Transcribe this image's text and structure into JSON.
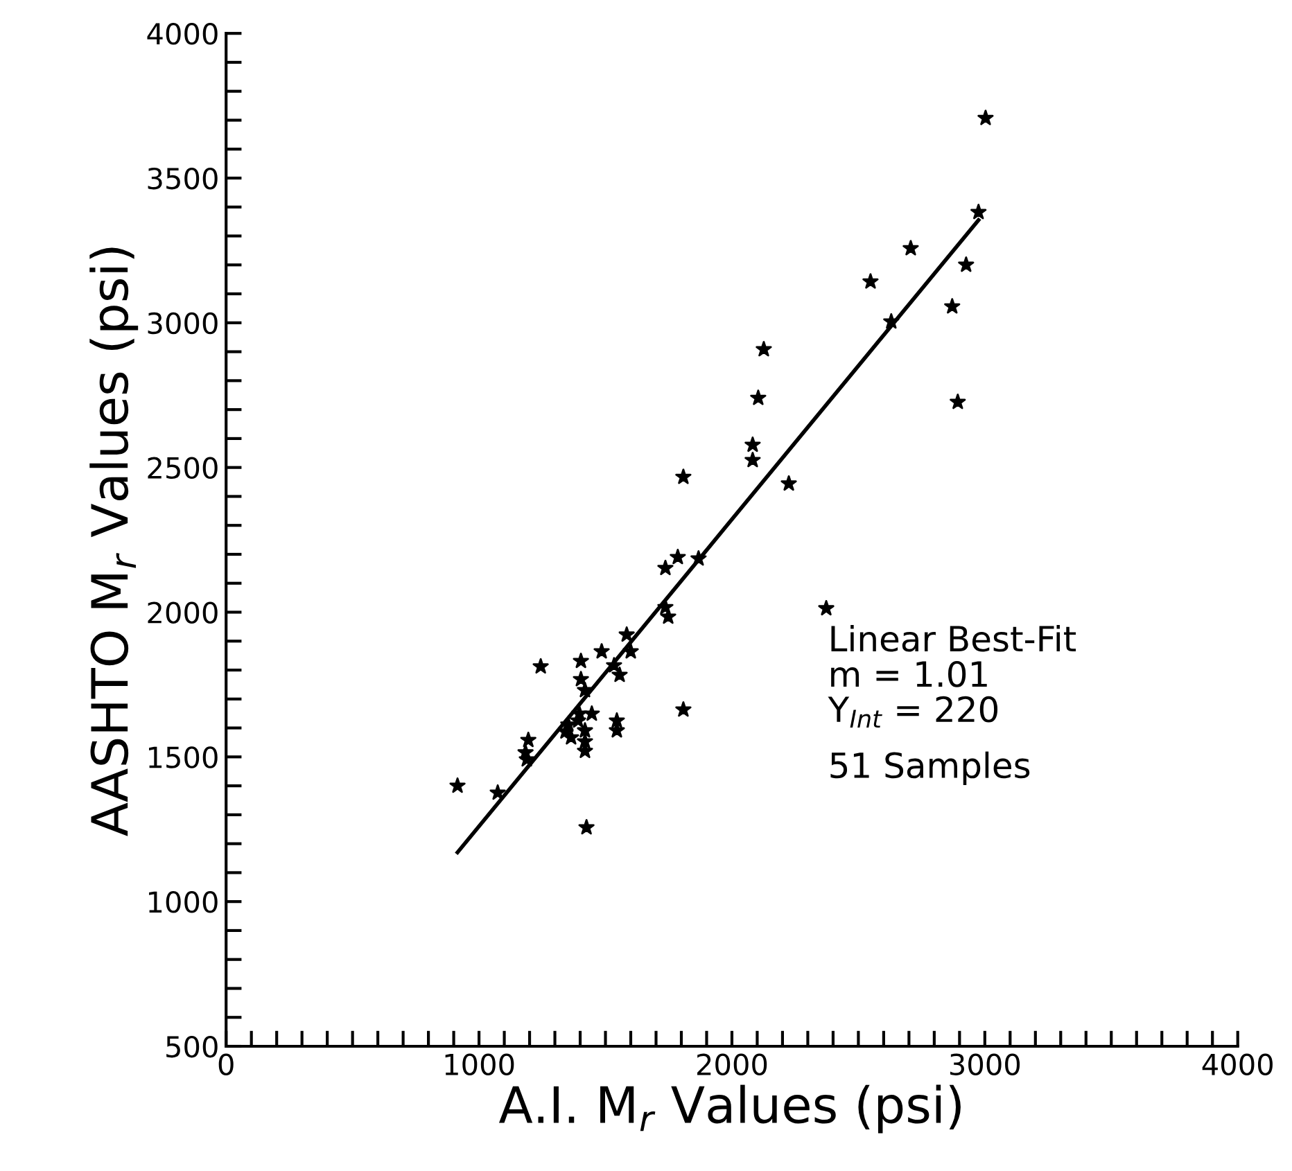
{
  "chart_data": {
    "type": "scatter",
    "xlabel": "A.I. M$_{r}$ Values (psi)",
    "ylabel": "AASHTO M$_{r}$ Values (psi)",
    "xlim": [
      0,
      4000
    ],
    "ylim": [
      500,
      4000
    ],
    "xticks": [
      0,
      {
        "value": 100,
        "label": null
      },
      {
        "value": 200,
        "label": null
      },
      {
        "value": 300,
        "label": null
      },
      {
        "value": 400,
        "label": null
      },
      {
        "value": 500,
        "label": null
      },
      {
        "value": 600,
        "label": null
      },
      {
        "value": 700,
        "label": null
      },
      {
        "value": 800,
        "label": null
      },
      {
        "value": 900,
        "label": null
      },
      1000,
      {
        "value": 1100,
        "label": null
      },
      {
        "value": 1200,
        "label": null
      },
      {
        "value": 1300,
        "label": null
      },
      {
        "value": 1400,
        "label": null
      },
      {
        "value": 1500,
        "label": null
      },
      {
        "value": 1600,
        "label": null
      },
      {
        "value": 1700,
        "label": null
      },
      {
        "value": 1800,
        "label": null
      },
      {
        "value": 1900,
        "label": null
      },
      2000,
      {
        "value": 2100,
        "label": null
      },
      {
        "value": 2200,
        "label": null
      },
      {
        "value": 2300,
        "label": null
      },
      {
        "value": 2400,
        "label": null
      },
      {
        "value": 2500,
        "label": null
      },
      {
        "value": 2600,
        "label": null
      },
      {
        "value": 2700,
        "label": null
      },
      {
        "value": 2800,
        "label": null
      },
      {
        "value": 2900,
        "label": null
      },
      3000,
      {
        "value": 3100,
        "label": null
      },
      {
        "value": 3200,
        "label": null
      },
      {
        "value": 3300,
        "label": null
      },
      {
        "value": 3400,
        "label": null
      },
      {
        "value": 3500,
        "label": null
      },
      {
        "value": 3600,
        "label": null
      },
      {
        "value": 3700,
        "label": null
      },
      {
        "value": 3800,
        "label": null
      },
      {
        "value": 3900,
        "label": null
      },
      4000
    ],
    "yticks": [
      500,
      {
        "value": 600,
        "label": null
      },
      {
        "value": 700,
        "label": null
      },
      {
        "value": 800,
        "label": null
      },
      {
        "value": 900,
        "label": null
      },
      1000,
      {
        "value": 1100,
        "label": null
      },
      {
        "value": 1200,
        "label": null
      },
      {
        "value": 1300,
        "label": null
      },
      {
        "value": 1400,
        "label": null
      },
      1500,
      {
        "value": 1600,
        "label": null
      },
      {
        "value": 1700,
        "label": null
      },
      {
        "value": 1800,
        "label": null
      },
      {
        "value": 1900,
        "label": null
      },
      2000,
      {
        "value": 2100,
        "label": null
      },
      {
        "value": 2200,
        "label": null
      },
      {
        "value": 2300,
        "label": null
      },
      {
        "value": 2400,
        "label": null
      },
      2500,
      {
        "value": 2600,
        "label": null
      },
      {
        "value": 2700,
        "label": null
      },
      {
        "value": 2800,
        "label": null
      },
      {
        "value": 2900,
        "label": null
      },
      3000,
      {
        "value": 3100,
        "label": null
      },
      {
        "value": 3200,
        "label": null
      },
      {
        "value": 3300,
        "label": null
      },
      {
        "value": 3400,
        "label": null
      },
      3500,
      {
        "value": 3600,
        "label": null
      },
      {
        "value": 3700,
        "label": null
      },
      {
        "value": 3800,
        "label": null
      },
      {
        "value": 3900,
        "label": null
      },
      4000
    ],
    "grid": false,
    "marker": "star",
    "series": [
      {
        "color": "#000000",
        "x": [
          915,
          1074,
          1195,
          1184,
          1189,
          1244,
          1403,
          1403,
          1419,
          1425,
          1353,
          1364,
          1397,
          1446,
          1419,
          1419,
          1419,
          1545,
          1545,
          1485,
          1534,
          1556,
          1584,
          1600,
          1808,
          1737,
          1786,
          1868,
          1737,
          1748,
          1342,
          1392,
          3003,
          2975,
          2926,
          2871,
          2893,
          2707,
          2548,
          2630,
          2126,
          2104,
          2082,
          2082,
          1808,
          2225,
          2373
        ],
        "values": [
          1400,
          1376,
          1558,
          1515,
          1491,
          1812,
          1831,
          1768,
          1730,
          1256,
          1611,
          1567,
          1649,
          1649,
          1591,
          1553,
          1520,
          1625,
          1591,
          1864,
          1816,
          1783,
          1922,
          1864,
          1663,
          2152,
          2190,
          2185,
          2017,
          1984,
          1587,
          1625,
          3707,
          3382,
          3200,
          3056,
          2726,
          3257,
          3142,
          3004,
          2908,
          2740,
          2578,
          2525,
          2467,
          2444,
          2013
        ]
      },
      {
        "type": "line",
        "color": "#000000",
        "x": [
          915,
          2975
        ],
        "values": [
          1170,
          3355
        ],
        "marker": "none",
        "line_style": "solid"
      }
    ],
    "annotations": [
      "Linear Best-Fit",
      "m = 1.01",
      "Y$_{Int}$ = 220",
      "51 Samples"
    ]
  }
}
